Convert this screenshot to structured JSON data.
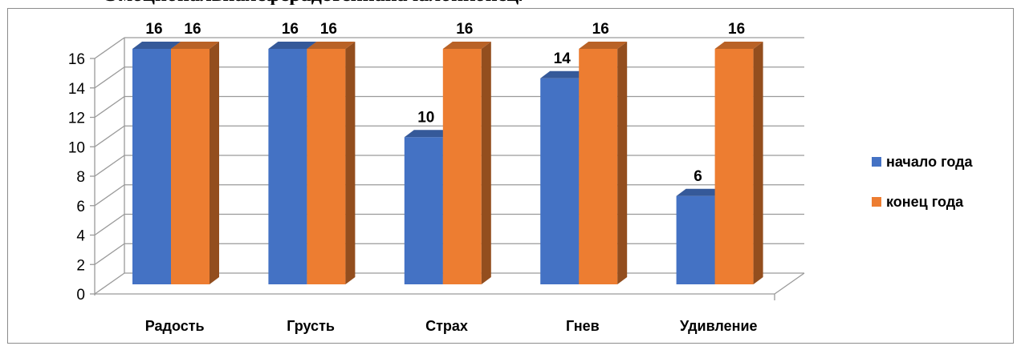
{
  "chart_data": {
    "type": "bar",
    "categories": [
      "Радость",
      "Грусть",
      "Страх",
      "Гнев",
      "Удивление"
    ],
    "series": [
      {
        "name": "начало года",
        "values": [
          16,
          16,
          10,
          14,
          6
        ],
        "color": "#4472C4"
      },
      {
        "name": "конец года",
        "values": [
          16,
          16,
          16,
          16,
          16
        ],
        "color": "#ED7D31"
      }
    ],
    "ylim": [
      0,
      16
    ],
    "yticks": [
      0,
      2,
      4,
      6,
      8,
      10,
      12,
      14,
      16
    ],
    "grid": true,
    "legend_position": "right",
    "style": "3d-clustered-column"
  }
}
